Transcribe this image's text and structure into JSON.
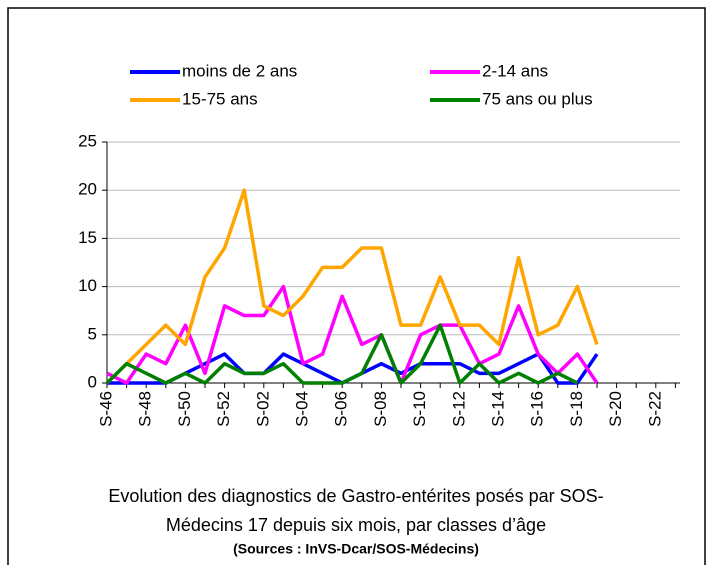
{
  "chart_data": {
    "type": "line",
    "categories": [
      "S-46",
      null,
      "S-48",
      null,
      "S-50",
      null,
      "S-52",
      null,
      "S-02",
      null,
      "S-04",
      null,
      "S-06",
      null,
      "S-08",
      null,
      "S-10",
      null,
      "S-12",
      null,
      "S-14",
      null,
      "S-16",
      null,
      "S-18",
      null,
      "S-20",
      null,
      "S-22",
      null
    ],
    "series": [
      {
        "name": "moins de 2 ans",
        "color": "#0000ff",
        "values": [
          0,
          0,
          0,
          0,
          1,
          2,
          3,
          1,
          1,
          3,
          2,
          1,
          0,
          1,
          2,
          1,
          2,
          2,
          2,
          1,
          1,
          2,
          3,
          0,
          0,
          3,
          null,
          null,
          null,
          null
        ]
      },
      {
        "name": "2-14 ans",
        "color": "#ff00ff",
        "values": [
          1,
          0,
          3,
          2,
          6,
          1,
          8,
          7,
          7,
          10,
          2,
          3,
          9,
          4,
          5,
          0,
          5,
          6,
          6,
          2,
          3,
          8,
          3,
          1,
          3,
          0,
          null,
          null,
          null,
          null
        ]
      },
      {
        "name": "15-75 ans",
        "color": "#ffa500",
        "values": [
          0,
          2,
          4,
          6,
          4,
          11,
          14,
          20,
          8,
          7,
          9,
          12,
          12,
          14,
          14,
          6,
          6,
          11,
          6,
          6,
          4,
          13,
          5,
          6,
          10,
          4,
          null,
          null,
          null,
          null
        ]
      },
      {
        "name": "75 ans ou plus",
        "color": "#008000",
        "values": [
          0,
          2,
          1,
          0,
          1,
          0,
          2,
          1,
          1,
          2,
          0,
          0,
          0,
          1,
          5,
          0,
          2,
          6,
          0,
          2,
          0,
          1,
          0,
          1,
          0,
          null,
          null,
          null,
          null,
          null
        ]
      }
    ],
    "ylim": [
      0,
      25
    ],
    "yticks": [
      0,
      5,
      10,
      15,
      20,
      25
    ],
    "grid": true,
    "caption": [
      "Evolution des diagnostics de Gastro-entérites posés par SOS-",
      "Médecins 17 depuis six mois, par classes d’âge"
    ],
    "source": "(Sources : InVS-Dcar/SOS-Médecins)"
  }
}
